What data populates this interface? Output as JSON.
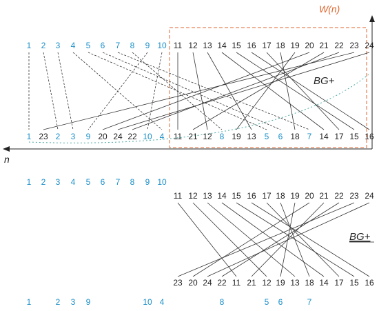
{
  "axes": {
    "vertical_label": "W(n)",
    "horizontal_label": "n"
  },
  "labels": {
    "upper_graph": "BG+",
    "lower_graph": "BG+"
  },
  "colors": {
    "blue": "#1a8fc9",
    "black": "#222222",
    "orange": "#e0662f",
    "teal": "#4aa8a0"
  },
  "diagram1": {
    "top_left": [
      "1",
      "2",
      "3",
      "4",
      "5",
      "6",
      "7",
      "8",
      "9",
      "10"
    ],
    "top_right": [
      "11",
      "12",
      "13",
      "14",
      "15",
      "16",
      "17",
      "18",
      "19",
      "20",
      "21",
      "22",
      "23",
      "24"
    ],
    "bottom": [
      "1",
      "23",
      "2",
      "3",
      "9",
      "20",
      "24",
      "22",
      "10",
      "4",
      "11",
      "21",
      "12",
      "8",
      "19",
      "13",
      "5",
      "6",
      "18",
      "7",
      "14",
      "17",
      "15",
      "16"
    ],
    "bottom_blue": [
      "1",
      "2",
      "3",
      "9",
      "10",
      "4",
      "8",
      "5",
      "6",
      "7"
    ]
  },
  "diagram2": {
    "top_left": [
      "1",
      "2",
      "3",
      "4",
      "5",
      "6",
      "7",
      "8",
      "9",
      "10"
    ],
    "top_right": [
      "11",
      "12",
      "13",
      "14",
      "15",
      "16",
      "17",
      "18",
      "19",
      "20",
      "21",
      "22",
      "23",
      "24"
    ],
    "lower_row": [
      "23",
      "20",
      "24",
      "22",
      "11",
      "21",
      "12",
      "19",
      "13",
      "18",
      "14",
      "17",
      "15",
      "16"
    ],
    "bottom_blue": [
      "1",
      "2",
      "3",
      "9",
      "10",
      "4",
      "8",
      "5",
      "6",
      "7"
    ]
  }
}
